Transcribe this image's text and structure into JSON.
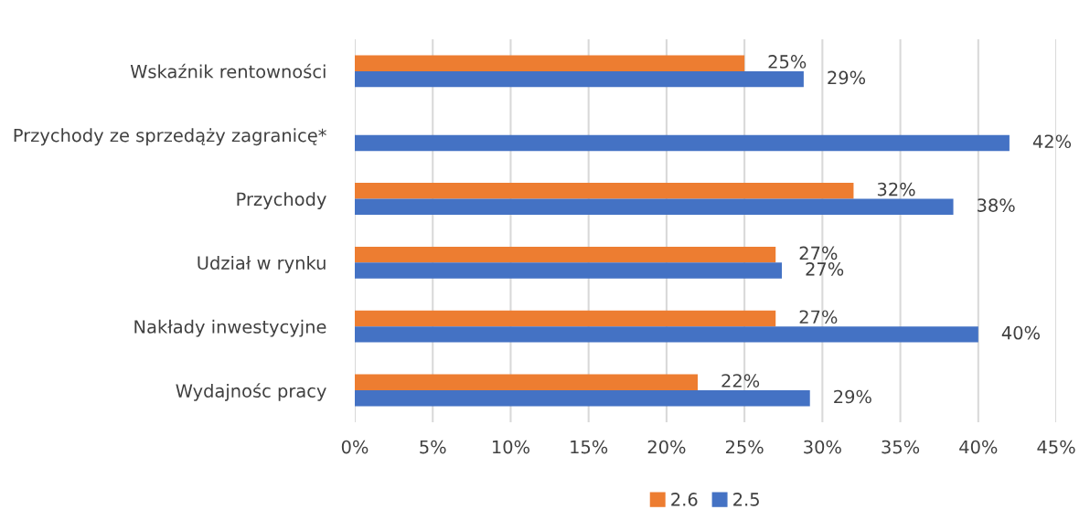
{
  "chart_data": {
    "type": "bar",
    "orientation": "horizontal",
    "categories": [
      "Wskaźnik rentowności",
      "Przychody ze sprzedąży zagranicę*",
      "Przychody",
      "Udział w rynku",
      "Nakłady inwestycyjne",
      "Wydajnośc pracy"
    ],
    "series": [
      {
        "name": "2.6",
        "color": "#ed7d31",
        "values": [
          25.0,
          null,
          32.0,
          27.0,
          27.0,
          22.0
        ],
        "value_labels": [
          "25%",
          null,
          "32%",
          "27%",
          "27%",
          "22%"
        ]
      },
      {
        "name": "2.5",
        "color": "#4472c4",
        "values": [
          28.8,
          42.0,
          38.4,
          27.4,
          40.0,
          29.2
        ],
        "value_labels": [
          "29%",
          "42%",
          "38%",
          "27%",
          "40%",
          "29%"
        ]
      }
    ],
    "xlim": [
      0,
      45
    ],
    "xticks": [
      {
        "value": 0,
        "label": "0%"
      },
      {
        "value": 5,
        "label": "5%"
      },
      {
        "value": 10,
        "label": "10%"
      },
      {
        "value": 15,
        "label": "15%"
      },
      {
        "value": 20,
        "label": "20%"
      },
      {
        "value": 25,
        "label": "25%"
      },
      {
        "value": 30,
        "label": "30%"
      },
      {
        "value": 35,
        "label": "35%"
      },
      {
        "value": 40,
        "label": "40%"
      },
      {
        "value": 45,
        "label": "45%"
      }
    ],
    "grid": "x",
    "legend": "bottom"
  }
}
